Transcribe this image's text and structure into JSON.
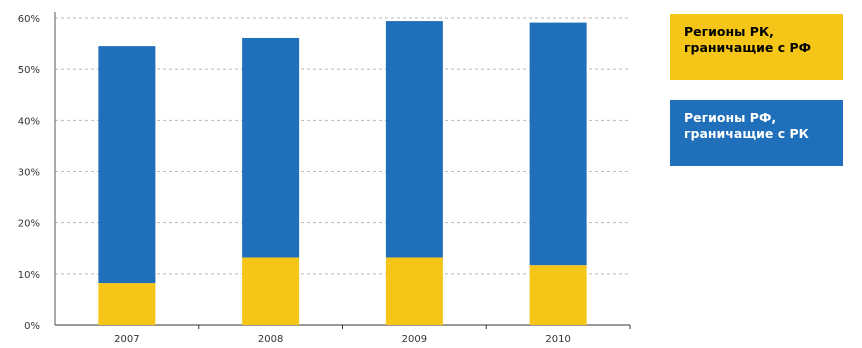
{
  "chart_data": {
    "type": "bar",
    "stacked": true,
    "categories": [
      "2007",
      "2008",
      "2009",
      "2010"
    ],
    "series": [
      {
        "name": "Регионы РК, граничащие с РФ",
        "color": "#f5c518",
        "values": [
          8.2,
          13.2,
          13.2,
          11.7
        ]
      },
      {
        "name": "Регионы РФ, граничащие с РК",
        "color": "#1f6fba",
        "values": [
          46.3,
          42.9,
          46.2,
          47.4
        ]
      }
    ],
    "ylim": [
      0,
      60
    ],
    "yticks": [
      "0%",
      "10%",
      "20%",
      "30%",
      "40%",
      "50%",
      "60%"
    ],
    "grid": true,
    "legend_position": "right"
  },
  "legend": {
    "yellow": {
      "line1": "Регионы РК,",
      "line2": "граничащие с РФ",
      "color": "#f5c518"
    },
    "blue": {
      "line1": "Регионы РФ,",
      "line2": "граничащие с РК",
      "color": "#1f6fba"
    }
  }
}
